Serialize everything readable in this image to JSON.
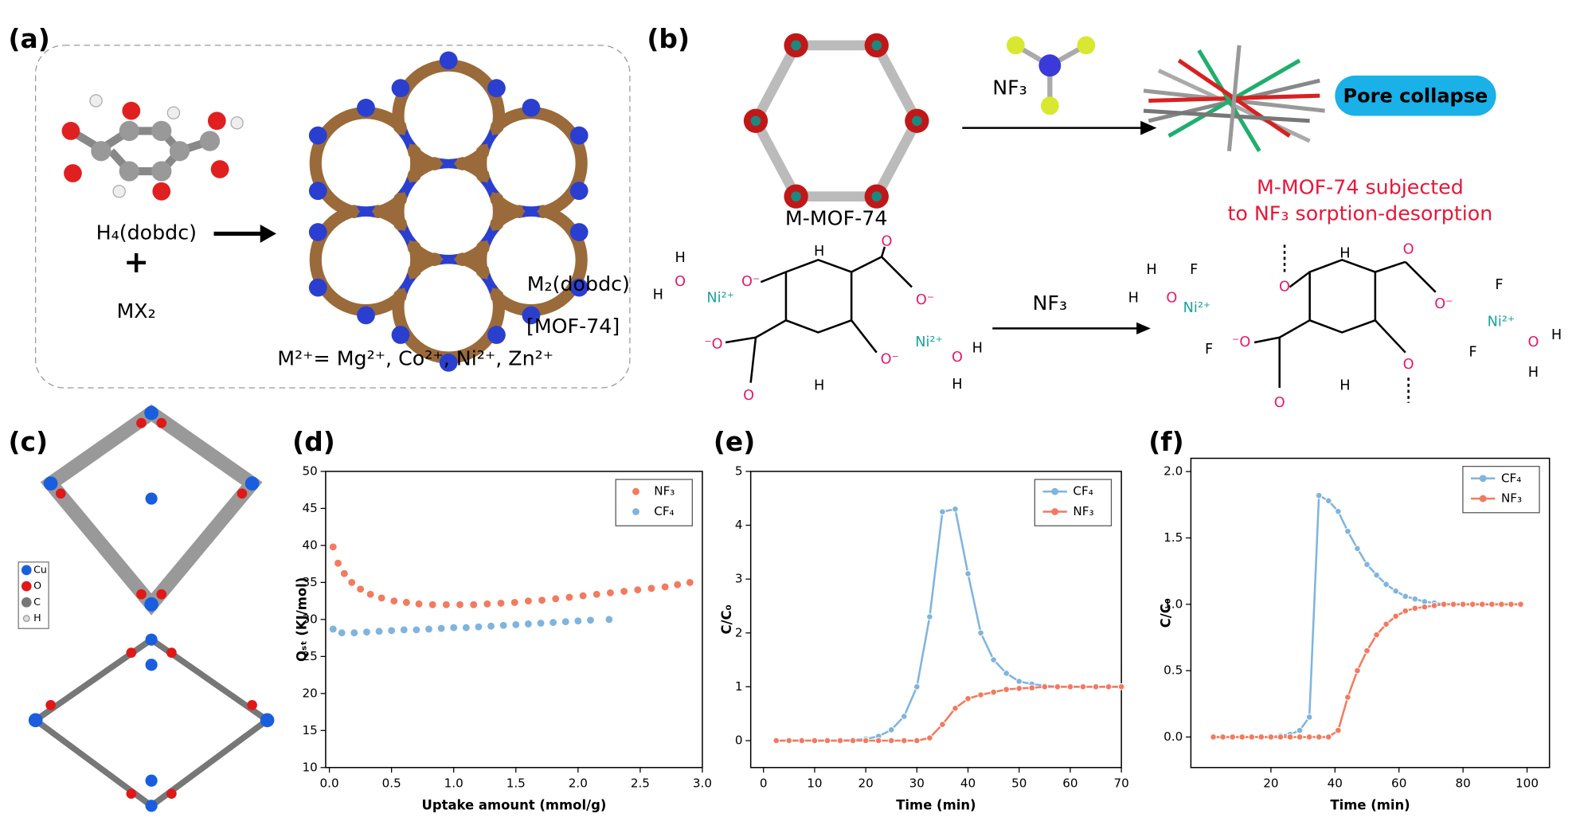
{
  "panels": {
    "a": {
      "label": "(a)",
      "ligand": "H₄(dobdc)",
      "plus": "+",
      "salt": "MX₂",
      "product": "M₂(dobdc)",
      "product_name": "[MOF-74]",
      "metals": "M²⁺= Mg²⁺, Co²⁺, Ni²⁺, Zn²⁺"
    },
    "b": {
      "label": "(b)",
      "mof": "M-MOF-74",
      "reagent": "NF₃",
      "collapse": "Pore collapse",
      "note1": "M-MOF-74 subjected",
      "note2": "to NF₃ sorption-desorption",
      "reagent2": "NF₃",
      "atoms": [
        "H",
        "H",
        "O",
        "Ni²⁺",
        "O⁻",
        "H",
        "O",
        "O⁻",
        "⁻O",
        "O",
        "O⁻",
        "Ni²⁺",
        "O",
        "H",
        "H",
        "H",
        "H",
        "H",
        "O",
        "F",
        "Ni²⁺",
        "F",
        "O",
        "H",
        "O",
        "O⁻",
        "⁻O",
        "O",
        "H",
        "O",
        "F",
        "Ni²⁺",
        "F",
        "O",
        "H",
        "H"
      ]
    },
    "c": {
      "label": "(c)",
      "legend": [
        "Cu",
        "O",
        "C",
        "H"
      ]
    }
  },
  "chart_data": [
    {
      "type": "scatter",
      "label": "(d)",
      "x_label": "Uptake amount (mmol/g)",
      "y_label": "Qₛₜ (KJ/mol)",
      "xlim": [
        -0.03,
        3.0
      ],
      "ylim": [
        10,
        50
      ],
      "xticks": [
        {
          "value": 0,
          "label": "0.0"
        },
        0.5,
        {
          "value": 1,
          "label": "1.0"
        },
        1.5,
        {
          "value": 2,
          "label": "2.0"
        },
        2.5,
        {
          "value": 3,
          "label": "3.0"
        }
      ],
      "yticks": [
        10,
        15,
        20,
        25,
        30,
        35,
        40,
        45,
        50
      ],
      "series": [
        {
          "name": "NF₃",
          "color": "#f27a5e",
          "x": [
            0.03,
            0.07,
            0.12,
            0.18,
            0.25,
            0.33,
            0.42,
            0.52,
            0.62,
            0.72,
            0.83,
            0.94,
            1.05,
            1.16,
            1.27,
            1.38,
            1.49,
            1.6,
            1.71,
            1.82,
            1.93,
            2.04,
            2.15,
            2.26,
            2.37,
            2.48,
            2.59,
            2.7,
            2.8,
            2.9
          ],
          "values": [
            39.8,
            37.6,
            36.2,
            35.0,
            34.1,
            33.4,
            32.9,
            32.5,
            32.3,
            32.1,
            32.0,
            32.0,
            32.0,
            32.0,
            32.1,
            32.2,
            32.3,
            32.5,
            32.6,
            32.8,
            33.0,
            33.2,
            33.4,
            33.6,
            33.8,
            34.0,
            34.2,
            34.4,
            34.7,
            35.0
          ]
        },
        {
          "name": "CF₄",
          "color": "#7fb4de",
          "x": [
            0.03,
            0.1,
            0.2,
            0.3,
            0.4,
            0.5,
            0.6,
            0.7,
            0.8,
            0.9,
            1.0,
            1.1,
            1.2,
            1.3,
            1.4,
            1.5,
            1.6,
            1.7,
            1.8,
            1.9,
            2.0,
            2.1,
            2.25
          ],
          "values": [
            28.7,
            28.2,
            28.2,
            28.3,
            28.4,
            28.5,
            28.6,
            28.6,
            28.7,
            28.8,
            28.9,
            28.9,
            29.0,
            29.1,
            29.2,
            29.3,
            29.4,
            29.5,
            29.6,
            29.7,
            29.8,
            29.9,
            30.0
          ]
        }
      ]
    },
    {
      "type": "line",
      "label": "(e)",
      "x_label": "Time (min)",
      "y_label": "C/C₀",
      "xlim": [
        -2.5,
        70
      ],
      "ylim": [
        -0.5,
        5
      ],
      "xticks": [
        0,
        10,
        20,
        30,
        40,
        50,
        60,
        70
      ],
      "yticks": [
        0,
        1,
        2,
        3,
        4,
        5
      ],
      "series": [
        {
          "name": "CF₄",
          "color": "#7fb4de",
          "x": [
            2.5,
            5,
            7.5,
            10,
            12.5,
            15,
            17.5,
            20,
            22.5,
            25,
            27.5,
            30,
            32.5,
            35,
            37.5,
            40,
            42.5,
            45,
            47.5,
            50,
            52.5,
            55,
            57.5,
            60,
            62.5,
            65,
            67.5,
            70
          ],
          "values": [
            0,
            0,
            0,
            0,
            0,
            0,
            0.01,
            0.03,
            0.08,
            0.2,
            0.45,
            1.0,
            2.3,
            4.25,
            4.3,
            3.1,
            2.0,
            1.5,
            1.25,
            1.1,
            1.05,
            1.02,
            1.0,
            1.0,
            1.0,
            1.0,
            1.0,
            1.0
          ]
        },
        {
          "name": "NF₃",
          "color": "#f27a5e",
          "x": [
            2.5,
            5,
            7.5,
            10,
            12.5,
            15,
            17.5,
            20,
            22.5,
            25,
            27.5,
            30,
            32.5,
            35,
            37.5,
            40,
            42.5,
            45,
            47.5,
            50,
            52.5,
            55,
            57.5,
            60,
            62.5,
            65,
            67.5,
            70
          ],
          "values": [
            0,
            0,
            0,
            0,
            0,
            0,
            0,
            0,
            0,
            0,
            0,
            0,
            0.05,
            0.3,
            0.6,
            0.78,
            0.85,
            0.9,
            0.95,
            0.97,
            0.98,
            1.0,
            1.0,
            1.0,
            1.0,
            1.0,
            1.0,
            1.0
          ]
        }
      ]
    },
    {
      "type": "line",
      "label": "(f)",
      "x_label": "Time (min)",
      "y_label": "C/C₀",
      "xlim": [
        -5,
        107
      ],
      "ylim": [
        -0.23,
        2.1
      ],
      "xticks": [
        20,
        40,
        60,
        80,
        100
      ],
      "yticks": [
        {
          "value": 0,
          "label": "0.0"
        },
        0.5,
        {
          "value": 1,
          "label": "1.0"
        },
        1.5,
        {
          "value": 2,
          "label": "2.0"
        }
      ],
      "series": [
        {
          "name": "CF₄",
          "color": "#7fb4de",
          "x": [
            2,
            5,
            8,
            11,
            14,
            17,
            20,
            23,
            26,
            29,
            32,
            35,
            38,
            41,
            44,
            47,
            50,
            53,
            56,
            59,
            62,
            65,
            68,
            71,
            74,
            77,
            80,
            83,
            86,
            89,
            92,
            95,
            98
          ],
          "values": [
            0,
            0,
            0,
            0,
            0,
            0,
            0,
            0.01,
            0.02,
            0.05,
            0.15,
            1.82,
            1.78,
            1.7,
            1.55,
            1.42,
            1.3,
            1.22,
            1.15,
            1.1,
            1.06,
            1.04,
            1.02,
            1.01,
            1.0,
            1.0,
            1.0,
            1.0,
            1.0,
            1.0,
            1.0,
            1.0,
            1.0
          ]
        },
        {
          "name": "NF₃",
          "color": "#f27a5e",
          "x": [
            2,
            5,
            8,
            11,
            14,
            17,
            20,
            23,
            26,
            29,
            32,
            35,
            38,
            41,
            44,
            47,
            50,
            53,
            56,
            59,
            62,
            65,
            68,
            71,
            74,
            77,
            80,
            83,
            86,
            89,
            92,
            95,
            98
          ],
          "values": [
            0,
            0,
            0,
            0,
            0,
            0,
            0,
            0,
            0,
            0,
            0,
            0,
            0,
            0.05,
            0.3,
            0.5,
            0.65,
            0.77,
            0.85,
            0.91,
            0.95,
            0.97,
            0.98,
            0.99,
            1.0,
            1.0,
            1.0,
            1.0,
            1.0,
            1.0,
            1.0,
            1.0,
            1.0
          ]
        }
      ]
    }
  ]
}
